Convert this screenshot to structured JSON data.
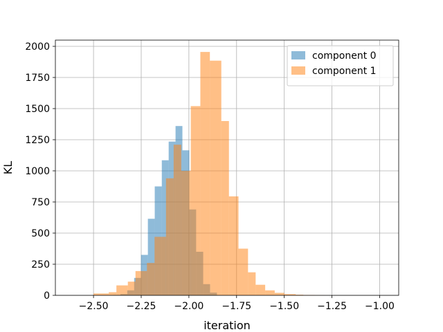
{
  "chart_data": {
    "type": "histogram",
    "title": "",
    "xlabel": "iteration",
    "ylabel": "KL",
    "xlim": [
      -2.7,
      -0.9
    ],
    "ylim": [
      0,
      2050
    ],
    "grid": true,
    "legend_position": "top-right",
    "xticks": [
      -2.5,
      -2.25,
      -2.0,
      -1.75,
      -1.5,
      -1.25,
      -1.0
    ],
    "xtick_labels": [
      "−2.50",
      "−2.25",
      "−2.00",
      "−1.75",
      "−1.50",
      "−1.25",
      "−1.00"
    ],
    "yticks": [
      0,
      250,
      500,
      750,
      1000,
      1250,
      1500,
      1750,
      2000
    ],
    "ytick_labels": [
      "0",
      "250",
      "500",
      "750",
      "1000",
      "1250",
      "1500",
      "1750",
      "2000"
    ],
    "series": [
      {
        "name": "component 0",
        "color": "#1f77b4",
        "opacity": 0.5,
        "bin_edges": [
          -2.396,
          -2.359,
          -2.323,
          -2.287,
          -2.251,
          -2.215,
          -2.179,
          -2.142,
          -2.106,
          -2.07,
          -2.034,
          -1.998,
          -1.962,
          -1.925,
          -1.889,
          -1.853
        ],
        "counts": [
          3,
          10,
          40,
          140,
          325,
          615,
          875,
          1085,
          1235,
          1360,
          1165,
          690,
          350,
          90,
          22
        ]
      },
      {
        "name": "component 1",
        "color": "#ff7f0e",
        "opacity": 0.5,
        "bin_edges": [
          -2.5,
          -2.42,
          -2.38,
          -2.32,
          -2.28,
          -2.22,
          -2.18,
          -2.12,
          -2.08,
          -2.04,
          -1.99,
          -1.94,
          -1.89,
          -1.83,
          -1.79,
          -1.74,
          -1.69,
          -1.65,
          -1.6,
          -1.55,
          -1.5,
          -1.44,
          -1.4,
          -1.34,
          -1.29
        ],
        "counts": [
          15,
          25,
          80,
          110,
          195,
          260,
          470,
          940,
          1210,
          1000,
          1520,
          1955,
          1885,
          1400,
          795,
          375,
          185,
          85,
          40,
          20,
          10,
          5,
          3,
          1
        ]
      }
    ]
  }
}
